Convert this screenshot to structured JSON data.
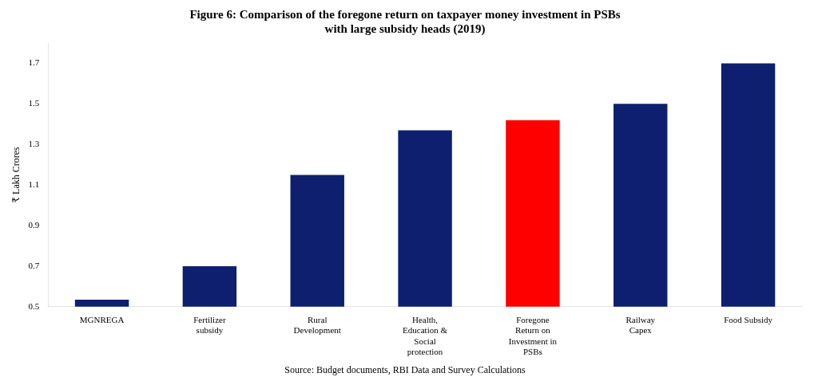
{
  "chart_data": {
    "type": "bar",
    "title": [
      "Figure 6: Comparison of the foregone return on taxpayer money investment in PSBs",
      "with large subsidy heads (2019)"
    ],
    "annotations": [
      "Source: Budget documents, RBI Data and Survey Calculations"
    ],
    "categories": [
      "MGNREGA",
      "Fertilizer\nsubsidy",
      "Rural\nDevelopment",
      "Health,\nEducation &\nSocial\nprotection",
      "Foregone\nReturn on\nInvestment in\nPSBs",
      "Railway\nCapex",
      "Food Subsidy"
    ],
    "values": [
      0.535,
      0.7,
      1.15,
      1.37,
      1.42,
      1.5,
      1.7
    ],
    "colors": [
      "#0d1f6e",
      "#0d1f6e",
      "#0d1f6e",
      "#0d1f6e",
      "#ff0000",
      "#0d1f6e",
      "#0d1f6e"
    ],
    "y_label": "₹ Lakh Crores",
    "ylim": [
      0.5,
      1.8
    ],
    "yticks": [
      0.5,
      0.7,
      0.9,
      1.1,
      1.3,
      1.5,
      1.7
    ],
    "grid": false
  }
}
